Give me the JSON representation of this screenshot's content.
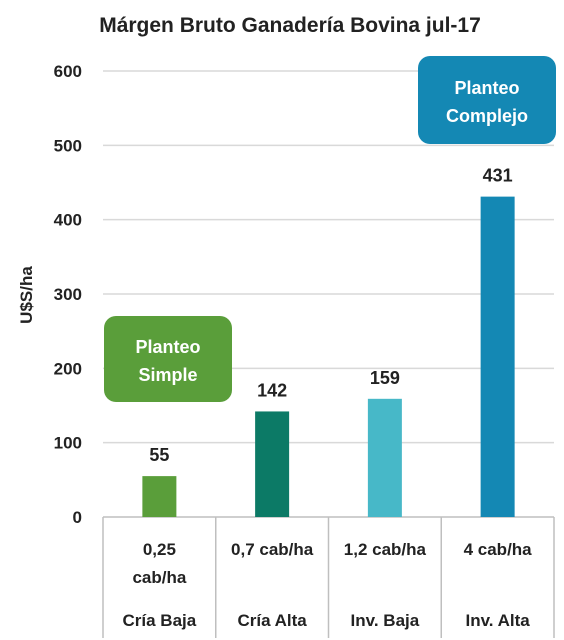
{
  "chart_data": {
    "type": "bar",
    "title": "Márgen Bruto Ganadería Bovina jul-17",
    "ylabel": "U$S/ha",
    "ylim": [
      0,
      600
    ],
    "yticks": [
      0,
      100,
      200,
      300,
      400,
      500,
      600
    ],
    "grid": true,
    "categories": [
      {
        "line1": "0,25",
        "line2": "cab/ha",
        "group": "Cría Baja"
      },
      {
        "line1": "0,7 cab/ha",
        "line2": "",
        "group": "Cría Alta"
      },
      {
        "line1": "1,2 cab/ha",
        "line2": "",
        "group": "Inv. Baja"
      },
      {
        "line1": "4 cab/ha",
        "line2": "",
        "group": "Inv. Alta"
      }
    ],
    "values": [
      55,
      142,
      159,
      431
    ],
    "colors": [
      "#5a9e3a",
      "#0c7a66",
      "#47b8c8",
      "#1488b4"
    ],
    "callouts": [
      {
        "line1": "Planteo",
        "line2": "Simple",
        "color": "#5a9e3a"
      },
      {
        "line1": "Planteo",
        "line2": "Complejo",
        "color": "#1488b4"
      }
    ]
  }
}
